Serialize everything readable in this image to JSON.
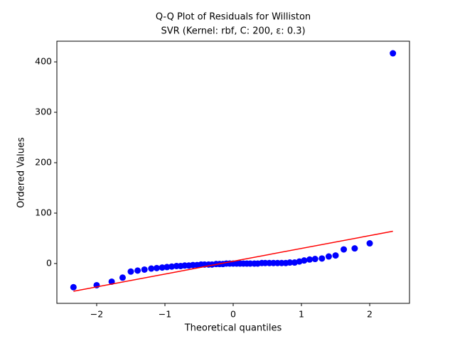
{
  "chart_data": {
    "type": "scatter",
    "title": "Q-Q Plot of Residuals for Williston",
    "subtitle": "SVR (Kernel: rbf, C: 200, ε: 0.3)",
    "x_label": "Theoretical quantiles",
    "y_label": "Ordered Values",
    "points": {
      "color": "#0000ff",
      "x": [
        -2.34,
        -2.0,
        -1.78,
        -1.62,
        -1.5,
        -1.4,
        -1.3,
        -1.2,
        -1.12,
        -1.04,
        -0.97,
        -0.9,
        -0.83,
        -0.77,
        -0.71,
        -0.65,
        -0.59,
        -0.53,
        -0.47,
        -0.42,
        -0.36,
        -0.31,
        -0.25,
        -0.2,
        -0.15,
        -0.1,
        -0.05,
        0,
        0.05,
        0.1,
        0.15,
        0.2,
        0.25,
        0.31,
        0.36,
        0.42,
        0.47,
        0.53,
        0.59,
        0.65,
        0.71,
        0.77,
        0.83,
        0.9,
        0.97,
        1.04,
        1.12,
        1.2,
        1.3,
        1.4,
        1.5,
        1.62,
        1.78,
        2.0,
        2.34
      ],
      "y": [
        -47,
        -43,
        -36,
        -28,
        -16,
        -14,
        -12,
        -10,
        -9,
        -8,
        -7,
        -6,
        -5,
        -5,
        -4,
        -4,
        -3,
        -3,
        -2,
        -2,
        -2,
        -2,
        -1,
        -1,
        -1,
        0,
        0,
        0,
        0,
        0,
        0,
        0,
        0,
        0,
        0,
        1,
        1,
        1,
        1,
        1,
        1,
        1,
        2,
        2,
        4,
        6,
        8,
        9,
        10,
        14,
        16,
        28,
        30,
        40,
        417
      ]
    },
    "fit_line": {
      "color": "#ff0000",
      "x": [
        -2.34,
        2.34
      ],
      "y": [
        -55,
        64
      ]
    },
    "xlim": [
      -2.583,
      2.583
    ],
    "ylim": [
      -79,
      441
    ],
    "xticks": [
      {
        "value": -2,
        "label": "−2"
      },
      {
        "value": -1,
        "label": "−1"
      },
      0,
      1,
      2
    ],
    "yticks": [
      0,
      100,
      200,
      300,
      400
    ]
  }
}
